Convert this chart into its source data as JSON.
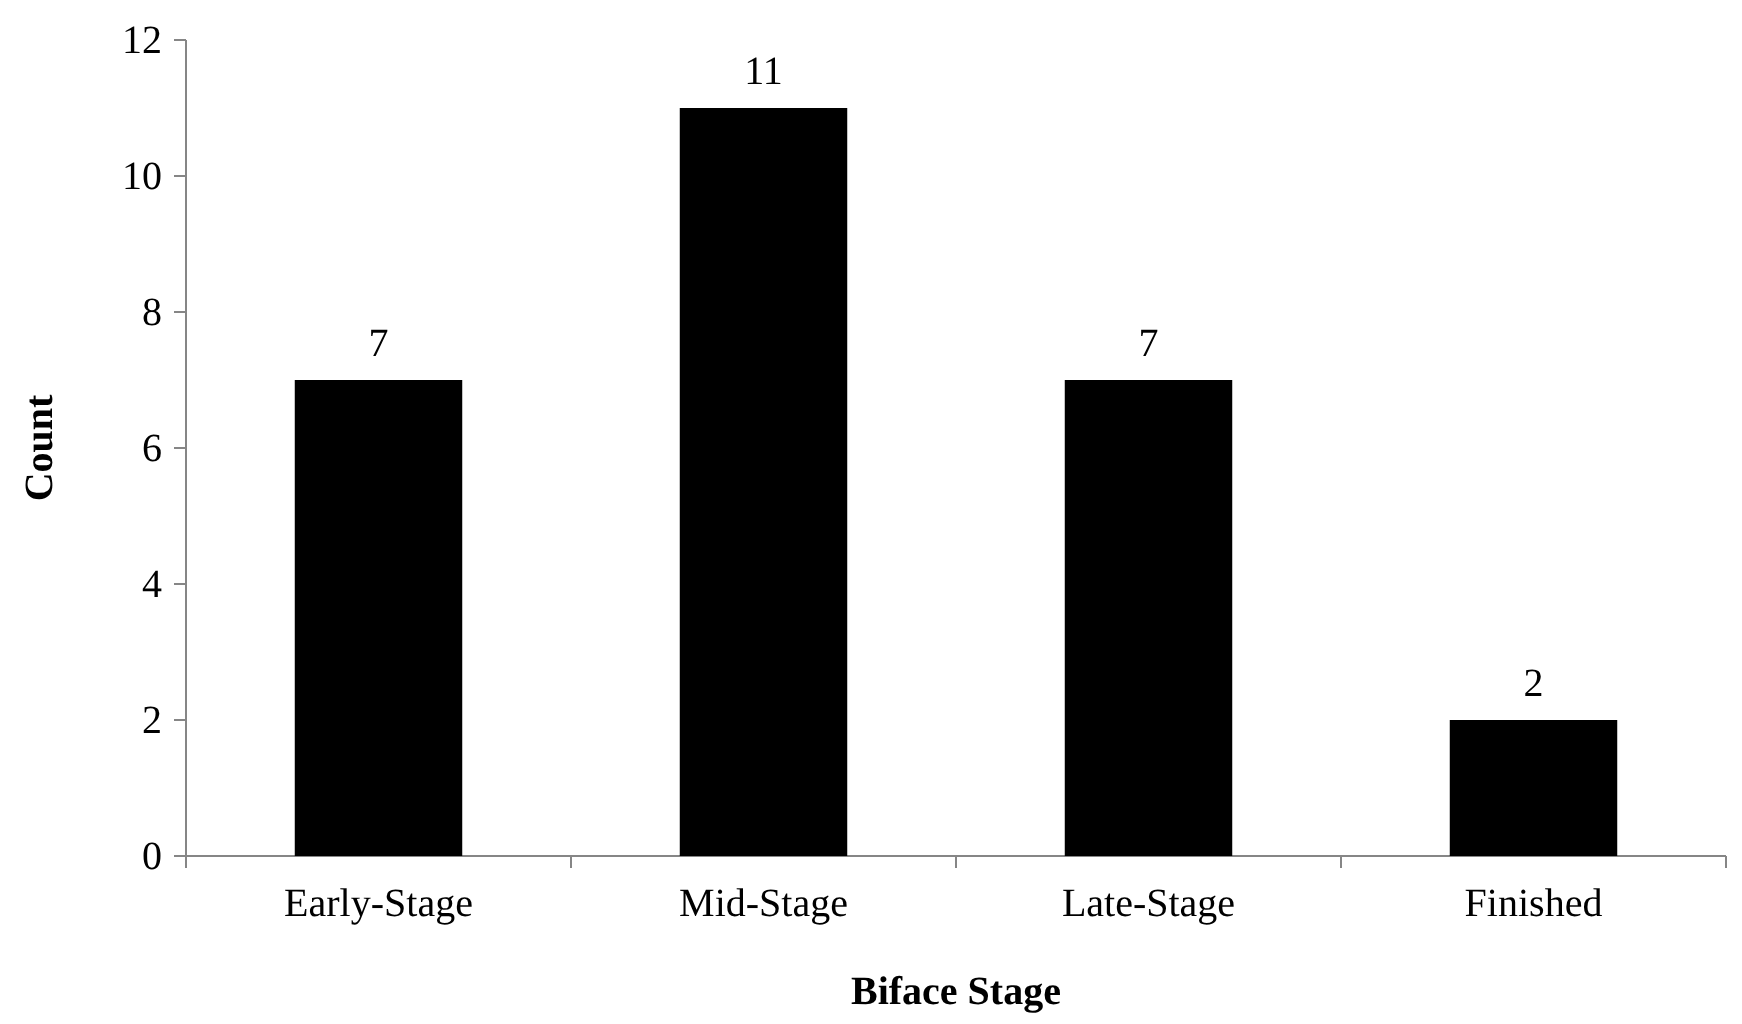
{
  "chart_data": {
    "type": "bar",
    "categories": [
      "Early-Stage",
      "Mid-Stage",
      "Late-Stage",
      "Finished"
    ],
    "values": [
      7,
      11,
      7,
      2
    ],
    "color": "#000000",
    "xlabel": "Biface Stage",
    "ylabel": "Count",
    "ylim": [
      0,
      12
    ],
    "yticks": [
      0,
      2,
      4,
      6,
      8,
      10,
      12
    ],
    "data_labels": true,
    "grid": false
  }
}
